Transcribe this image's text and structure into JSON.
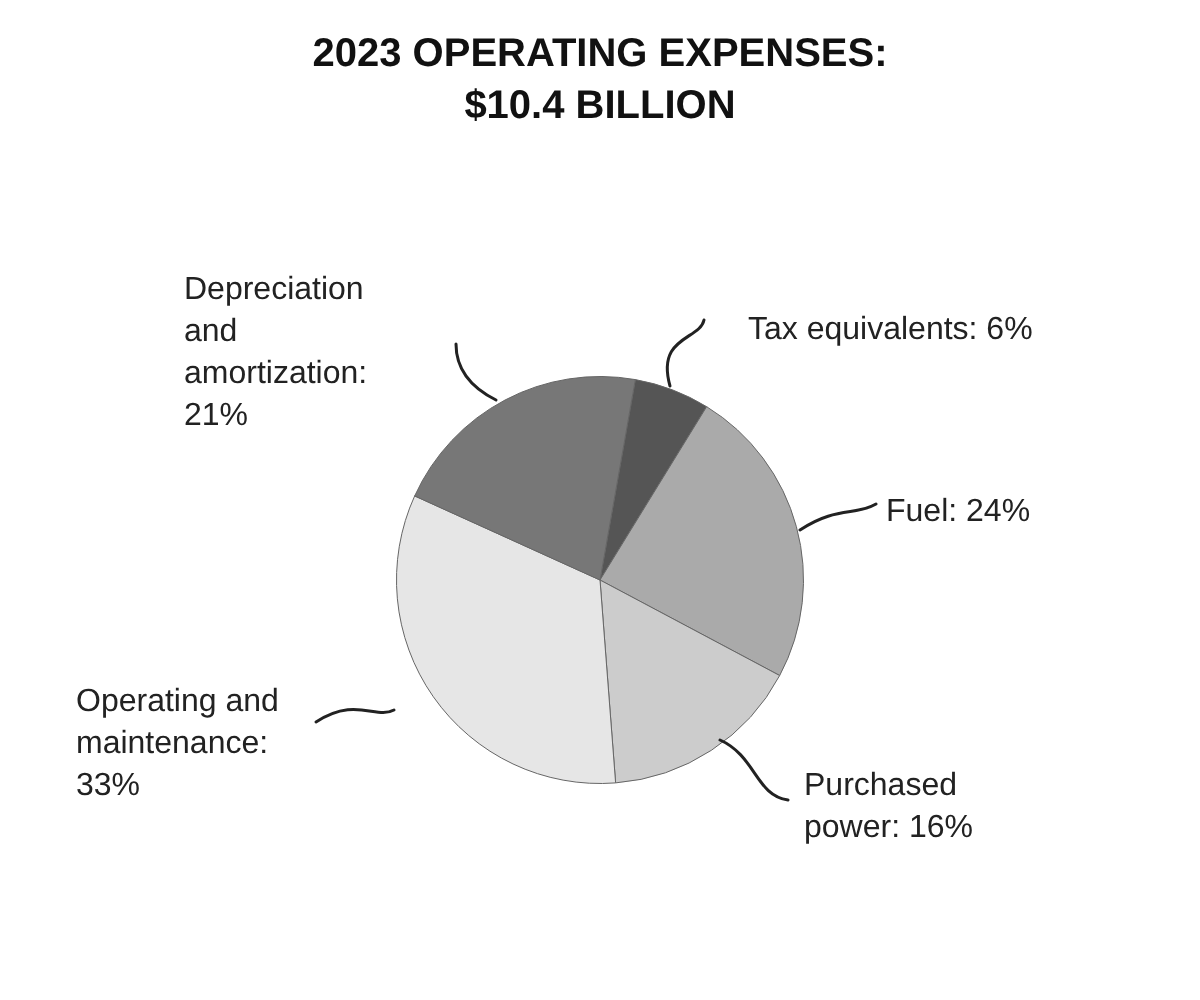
{
  "chart_data": {
    "type": "pie",
    "title": "2023 OPERATING EXPENSES: $10.4 BILLION",
    "categories": [
      "Tax equivalents: 6%",
      "Fuel: 24%",
      "Purchased power: 16%",
      "Operating and maintenance: 33%",
      "Depreciation and amortization: 21%"
    ],
    "values": [
      6,
      24,
      16,
      33,
      21
    ],
    "colors": [
      "#555555",
      "#aaaaaa",
      "#cccccc",
      "#e6e6e6",
      "#777777"
    ]
  }
}
